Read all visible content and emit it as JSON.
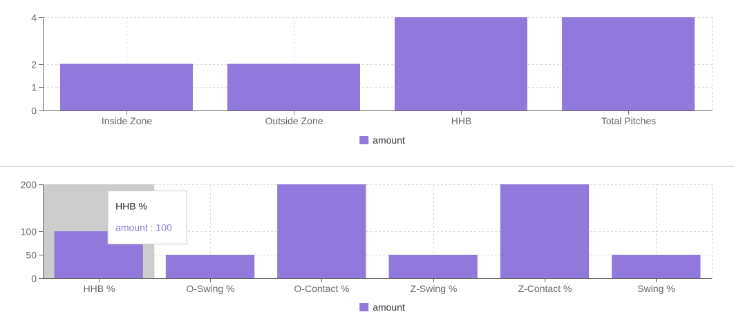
{
  "colors": {
    "bar": "#9079db",
    "grid": "#d8d8d8",
    "axis": "#666666",
    "tooltip_cursor": "#cccccc"
  },
  "chart_data": [
    {
      "type": "bar",
      "categories": [
        "Inside Zone",
        "Outside Zone",
        "HHB",
        "Total Pitches"
      ],
      "series": [
        {
          "name": "amount",
          "values": [
            2,
            2,
            4,
            4
          ]
        }
      ],
      "y_ticks": [
        0,
        1,
        2,
        4
      ],
      "ylim": [
        0,
        4
      ],
      "grid": true,
      "legend": "bottom-center",
      "legend_label": "amount"
    },
    {
      "type": "bar",
      "categories": [
        "HHB %",
        "O-Swing %",
        "O-Contact %",
        "Z-Swing %",
        "Z-Contact %",
        "Swing %"
      ],
      "series": [
        {
          "name": "amount",
          "values": [
            100,
            50,
            200,
            50,
            200,
            50
          ]
        }
      ],
      "y_ticks": [
        0,
        50,
        100,
        200
      ],
      "ylim": [
        0,
        200
      ],
      "grid": true,
      "legend": "bottom-center",
      "legend_label": "amount",
      "tooltip": {
        "active_index": 0,
        "title": "HHB %",
        "text": "amount : 100"
      }
    }
  ]
}
